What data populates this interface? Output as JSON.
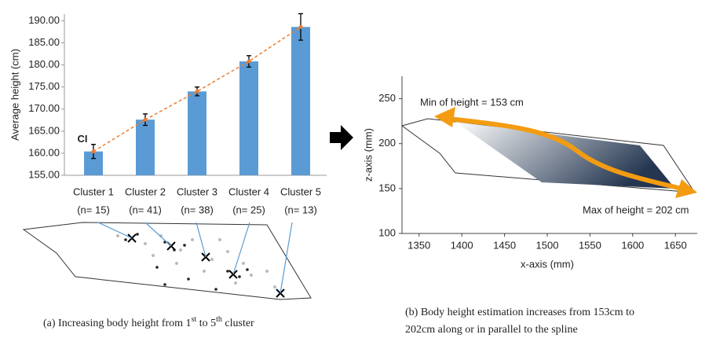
{
  "chart_data": [
    {
      "type": "bar",
      "ylabel": "Average height (cm)",
      "categories": [
        "Cluster 1",
        "Cluster 2",
        "Cluster 3",
        "Cluster 4",
        "Cluster 5"
      ],
      "category_counts": [
        "(n= 15)",
        "(n= 41)",
        "(n= 38)",
        "(n= 25)",
        "(n= 13)"
      ],
      "values": [
        160.4,
        167.6,
        174.0,
        180.8,
        188.6
      ],
      "errors": [
        1.6,
        1.3,
        1.0,
        1.3,
        3.0
      ],
      "color": "#5b9bd5",
      "line_color": "#ed7d31",
      "annotation": "CI",
      "ylim": [
        155,
        191.5
      ],
      "yticks": [
        {
          "value": 155,
          "label": "155.00"
        },
        {
          "value": 160,
          "label": "160.00"
        },
        {
          "value": 165,
          "label": "165.00"
        },
        {
          "value": 170,
          "label": "170.00"
        },
        {
          "value": 175,
          "label": "175.00"
        },
        {
          "value": 180,
          "label": "180.00"
        },
        {
          "value": 185,
          "label": "185.00"
        },
        {
          "value": 190,
          "label": "190.00"
        }
      ],
      "caption": [
        "(a) Increasing body height from 1",
        "st",
        " to 5",
        "th",
        " cluster"
      ]
    },
    {
      "type": "schematic",
      "xlabel": "x-axis (mm)",
      "ylabel": "z-axis (mm)",
      "xlim": [
        1330,
        1670
      ],
      "xticks": [
        1350,
        1400,
        1450,
        1500,
        1550,
        1600,
        1650
      ],
      "ylim": [
        100,
        275
      ],
      "yticks": [
        100,
        150,
        200,
        250
      ],
      "annotations": [
        "Min of height = 153 cm",
        "Max of height = 202 cm"
      ],
      "caption": [
        "(b) Body height estimation increases from 153cm to",
        "202cm along or in parallel to the spline"
      ]
    }
  ]
}
